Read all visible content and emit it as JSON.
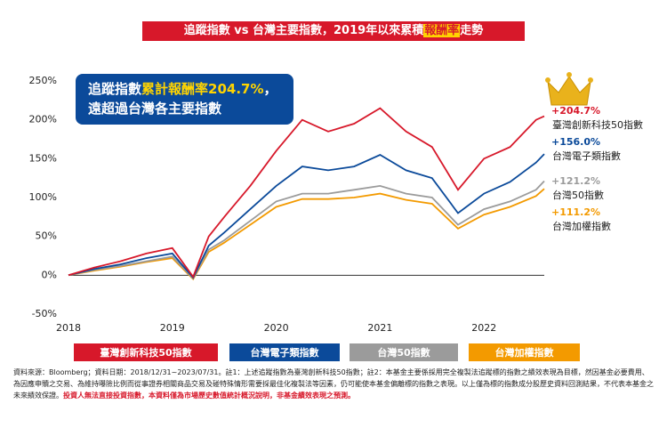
{
  "chart_data": {
    "type": "line",
    "title_parts": [
      "追蹤指數 vs 台灣主要指數，2019年以來累積",
      "報酬率",
      "走勢"
    ],
    "callout": {
      "line1": [
        "追蹤指數",
        "累計報酬率204.7%",
        "，"
      ],
      "line2": "遠超過台灣各主要指數"
    },
    "x": [
      2018,
      2018.25,
      2018.5,
      2018.75,
      2019,
      2019.2,
      2019.35,
      2019.5,
      2019.75,
      2020,
      2020.25,
      2020.5,
      2020.75,
      2021,
      2021.25,
      2021.5,
      2021.75,
      2022,
      2022.25,
      2022.5,
      2022.58
    ],
    "xlim": [
      2018,
      2022.58
    ],
    "xticks": [
      2018,
      2019,
      2020,
      2021,
      2022
    ],
    "ylim": [
      -50,
      250
    ],
    "yticks": [
      {
        "value": -50,
        "label": "-50%"
      },
      {
        "value": 0,
        "label": "0%"
      },
      {
        "value": 50,
        "label": "50%"
      },
      {
        "value": 100,
        "label": "100%"
      },
      {
        "value": 150,
        "label": "150%"
      },
      {
        "value": 200,
        "label": "200%"
      },
      {
        "value": 250,
        "label": "250%"
      }
    ],
    "series": [
      {
        "name": "臺灣創新科技50指數",
        "color": "#d7182a",
        "values": [
          0,
          10,
          18,
          28,
          35,
          -2,
          50,
          75,
          115,
          160,
          200,
          185,
          195,
          215,
          185,
          165,
          110,
          150,
          165,
          200,
          204.7
        ],
        "value_labels": [
          null,
          null,
          null,
          null,
          null,
          null,
          null,
          null,
          null,
          null,
          null,
          null,
          null,
          null,
          null,
          null,
          null,
          null,
          null,
          null,
          "+204.7%"
        ]
      },
      {
        "name": "台灣電子類指數",
        "color": "#0b4a9a",
        "values": [
          0,
          8,
          14,
          22,
          28,
          -3,
          38,
          55,
          85,
          115,
          140,
          135,
          140,
          155,
          135,
          125,
          80,
          105,
          120,
          145,
          156
        ],
        "value_labels": [
          null,
          null,
          null,
          null,
          null,
          null,
          null,
          null,
          null,
          null,
          null,
          null,
          null,
          null,
          null,
          null,
          null,
          null,
          null,
          null,
          "+156.0%"
        ]
      },
      {
        "name": "台灣50指數",
        "color": "#9b9b9b",
        "values": [
          0,
          7,
          12,
          18,
          24,
          -4,
          33,
          45,
          70,
          95,
          105,
          105,
          110,
          115,
          105,
          100,
          65,
          85,
          95,
          110,
          121.2
        ],
        "value_labels": [
          null,
          null,
          null,
          null,
          null,
          null,
          null,
          null,
          null,
          null,
          null,
          null,
          null,
          null,
          null,
          null,
          null,
          null,
          null,
          null,
          "+121.2%"
        ]
      },
      {
        "name": "台灣加權指數",
        "color": "#f39a00",
        "values": [
          0,
          6,
          11,
          17,
          22,
          -5,
          30,
          42,
          65,
          88,
          98,
          98,
          100,
          105,
          97,
          92,
          60,
          78,
          88,
          102,
          111.2
        ],
        "value_labels": [
          null,
          null,
          null,
          null,
          null,
          null,
          null,
          null,
          null,
          null,
          null,
          null,
          null,
          null,
          null,
          null,
          null,
          null,
          null,
          null,
          "+111.2%"
        ]
      }
    ],
    "footnote": [
      "資料來源：Bloomberg；資料日期：2018/12/31~2023/07/31。註1：上述追蹤指數為臺灣創新科技50指數；註2：本基金主要係採用完全複製法追蹤標的指數之績效表現為目標，然因基金必要費用、為因應申贖之交易、為維持曝險比例而從事證券相關商品交易及碰特殊情形需要採最佳化複製法等因素，仍可能使本基金偏離標的指數之表現。以上僅為標的指數成分股歷史資料回測結果，不代表本基金之未來績效保證。",
      "投資人無法直接投資指數，本資料僅為市場歷史數值統計概況說明，非基金績效表現之預測。"
    ]
  }
}
